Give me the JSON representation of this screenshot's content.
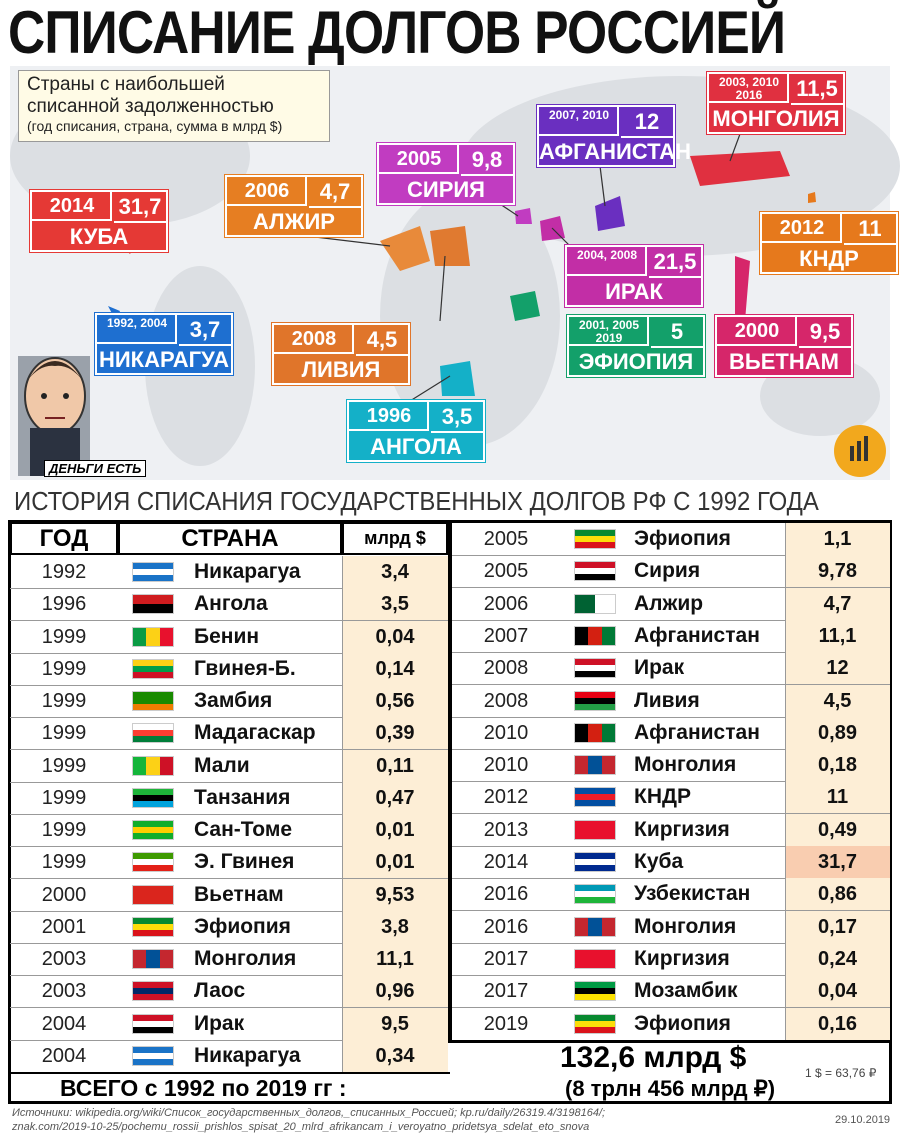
{
  "title": "СПИСАНИЕ ДОЛГОВ РОССИЕЙ",
  "map": {
    "legend": [
      "Страны с наибольшей",
      "списанной задолженностью",
      "(год списания, страна, сумма в млрд $)"
    ],
    "labels": [
      {
        "years": "2014",
        "amount": "31,7",
        "country": "КУБА"
      },
      {
        "years": "2006",
        "amount": "4,7",
        "country": "АЛЖИР"
      },
      {
        "years": "2005",
        "amount": "9,8",
        "country": "СИРИЯ"
      },
      {
        "years": "2007, 2010",
        "amount": "12",
        "country": "АФГАНИСТАН"
      },
      {
        "years": "2003, 2010 2016",
        "amount": "11,5",
        "country": "МОНГОЛИЯ"
      },
      {
        "years": "2012",
        "amount": "11",
        "country": "КНДР"
      },
      {
        "years": "2004, 2008",
        "amount": "21,5",
        "country": "ИРАК"
      },
      {
        "years": "1992, 2004",
        "amount": "3,7",
        "country": "НИКАРАГУА"
      },
      {
        "years": "2008",
        "amount": "4,5",
        "country": "ЛИВИЯ"
      },
      {
        "years": "2001, 2005 2019",
        "amount": "5",
        "country": "ЭФИОПИЯ"
      },
      {
        "years": "2000",
        "amount": "9,5",
        "country": "ВЬЕТНАМ"
      },
      {
        "years": "1996",
        "amount": "3,5",
        "country": "АНГОЛА"
      }
    ],
    "caption": "ДЕНЬГИ ЕСТЬ"
  },
  "subtitle": "ИСТОРИЯ СПИСАНИЯ ГОСУДАРСТВЕННЫХ ДОЛГОВ РФ С 1992 ГОДА",
  "table": {
    "header": [
      "ГОД",
      "СТРАНА",
      "млрд $"
    ],
    "rows": [
      [
        "1992",
        "Никарагуа",
        "3,4"
      ],
      [
        "1996",
        "Ангола",
        "3,5"
      ],
      [
        "1999",
        "Бенин",
        "0,04"
      ],
      [
        "1999",
        "Гвинея-Б.",
        "0,14"
      ],
      [
        "1999",
        "Замбия",
        "0,56"
      ],
      [
        "1999",
        "Мадагаскар",
        "0,39"
      ],
      [
        "1999",
        "Мали",
        "0,11"
      ],
      [
        "1999",
        "Танзания",
        "0,47"
      ],
      [
        "1999",
        "Сан-Томе",
        "0,01"
      ],
      [
        "1999",
        "Э. Гвинея",
        "0,01"
      ],
      [
        "2000",
        "Вьетнам",
        "9,53"
      ],
      [
        "2001",
        "Эфиопия",
        "3,8"
      ],
      [
        "2003",
        "Монголия",
        "11,1"
      ],
      [
        "2003",
        "Лаос",
        "0,96"
      ],
      [
        "2004",
        "Ирак",
        "9,5"
      ],
      [
        "2004",
        "Никарагуа",
        "0,34"
      ],
      [
        "2005",
        "Эфиопия",
        "1,1"
      ],
      [
        "2005",
        "Сирия",
        "9,78"
      ],
      [
        "2006",
        "Алжир",
        "4,7"
      ],
      [
        "2007",
        "Афганистан",
        "11,1"
      ],
      [
        "2008",
        "Ирак",
        "12"
      ],
      [
        "2008",
        "Ливия",
        "4,5"
      ],
      [
        "2010",
        "Афганистан",
        "0,89"
      ],
      [
        "2010",
        "Монголия",
        "0,18"
      ],
      [
        "2012",
        "КНДР",
        "11"
      ],
      [
        "2013",
        "Киргизия",
        "0,49"
      ],
      [
        "2014",
        "Куба",
        "31,7"
      ],
      [
        "2016",
        "Узбекистан",
        "0,86"
      ],
      [
        "2016",
        "Монголия",
        "0,17"
      ],
      [
        "2017",
        "Киргизия",
        "0,24"
      ],
      [
        "2017",
        "Мозамбик",
        "0,04"
      ],
      [
        "2019",
        "Эфиопия",
        "0,16"
      ]
    ]
  },
  "total": {
    "label": "ВСЕГО с 1992 по 2019 гг :",
    "amount": "132,6 млрд $",
    "rub": "(8 трлн 456 млрд ₽)",
    "rate": "1 $ = 63,76 ₽"
  },
  "sources": [
    "Источники: wikipedia.org/wiki/Список_государственных_долгов,_списанных_Россией; kp.ru/daily/26319.4/3198164/;",
    "znak.com/2019-10-25/pochemu_rossii_prishlos_spisat_20_mlrd_afrikancam_i_veroyatno_pridetsya_sdelat_eto_snova"
  ],
  "date": "29.10.2019"
}
